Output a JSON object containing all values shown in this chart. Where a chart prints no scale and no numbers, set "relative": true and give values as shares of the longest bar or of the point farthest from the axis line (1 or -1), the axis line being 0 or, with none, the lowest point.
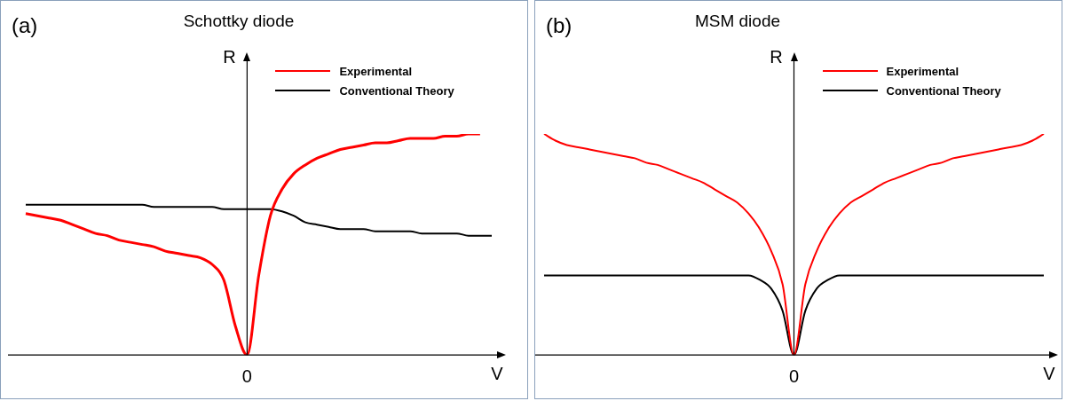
{
  "chart_data": [
    {
      "type": "line",
      "title": "Schottky diode",
      "xlabel": "V",
      "ylabel": "R",
      "annotations": [
        "(a)",
        "0"
      ],
      "relative": true,
      "legend": "top right",
      "categories": [
        null,
        null,
        null,
        null,
        null,
        null,
        null,
        null,
        null,
        null,
        null,
        null,
        null,
        null,
        null,
        null,
        null,
        null,
        null,
        null,
        null,
        null,
        null,
        null,
        null,
        null,
        null,
        null,
        null,
        null,
        null,
        null,
        null,
        null,
        null,
        null,
        null,
        null,
        null,
        null,
        null
      ],
      "series": [
        {
          "name": "Experimental",
          "color": "#ff0000",
          "values": [
            0.64,
            0.63,
            0.62,
            0.61,
            0.59,
            0.57,
            0.55,
            0.54,
            0.52,
            0.51,
            0.5,
            0.49,
            0.47,
            0.46,
            0.45,
            0.44,
            0.41,
            0.34,
            0.13,
            0,
            0.36,
            0.63,
            0.75,
            0.82,
            0.86,
            0.89,
            0.91,
            0.93,
            0.94,
            0.95,
            0.96,
            0.96,
            0.97,
            0.98,
            0.98,
            0.98,
            0.99,
            0.99,
            1.0,
            1.0,
            null
          ]
        },
        {
          "name": "Conventional Theory",
          "color": "#000000",
          "values": [
            0.68,
            0.68,
            0.68,
            0.68,
            0.68,
            0.68,
            0.68,
            0.68,
            0.68,
            0.68,
            0.68,
            0.67,
            0.67,
            0.67,
            0.67,
            0.67,
            0.67,
            0.66,
            0.66,
            0.66,
            0.66,
            0.66,
            0.65,
            0.63,
            0.6,
            0.59,
            0.58,
            0.57,
            0.57,
            0.57,
            0.56,
            0.56,
            0.56,
            0.56,
            0.55,
            0.55,
            0.55,
            0.55,
            0.54,
            0.54,
            0.54
          ]
        }
      ]
    },
    {
      "type": "line",
      "title": "MSM diode",
      "xlabel": "V",
      "ylabel": "R",
      "annotations": [
        "(b)",
        "0"
      ],
      "relative": true,
      "legend": "top right",
      "categories": [
        null,
        null,
        null,
        null,
        null,
        null,
        null,
        null,
        null,
        null,
        null,
        null,
        null,
        null,
        null,
        null,
        null,
        null,
        null,
        null,
        null,
        null,
        null,
        null,
        null,
        null,
        null,
        null,
        null,
        null,
        null,
        null,
        null,
        null,
        null,
        null,
        null,
        null,
        null,
        null,
        null,
        null,
        null,
        null,
        null
      ],
      "series": [
        {
          "name": "Experimental",
          "color": "#ff0000",
          "values": [
            1.0,
            0.97,
            0.95,
            0.94,
            0.93,
            0.92,
            0.91,
            0.9,
            0.89,
            0.87,
            0.86,
            0.84,
            0.82,
            0.8,
            0.78,
            0.75,
            0.72,
            0.69,
            0.64,
            0.57,
            0.47,
            0.32,
            0,
            0.32,
            0.47,
            0.57,
            0.64,
            0.69,
            0.72,
            0.75,
            0.78,
            0.8,
            0.82,
            0.84,
            0.86,
            0.87,
            0.89,
            0.9,
            0.91,
            0.92,
            0.93,
            0.94,
            0.95,
            0.97,
            1.0
          ]
        },
        {
          "name": "Conventional Theory",
          "color": "#000000",
          "values": [
            0.36,
            0.36,
            0.36,
            0.36,
            0.36,
            0.36,
            0.36,
            0.36,
            0.36,
            0.36,
            0.36,
            0.36,
            0.36,
            0.36,
            0.36,
            0.36,
            0.36,
            0.36,
            0.36,
            0.34,
            0.3,
            0.2,
            0,
            0.2,
            0.3,
            0.34,
            0.36,
            0.36,
            0.36,
            0.36,
            0.36,
            0.36,
            0.36,
            0.36,
            0.36,
            0.36,
            0.36,
            0.36,
            0.36,
            0.36,
            0.36,
            0.36,
            0.36,
            0.36,
            0.36
          ]
        }
      ]
    }
  ]
}
